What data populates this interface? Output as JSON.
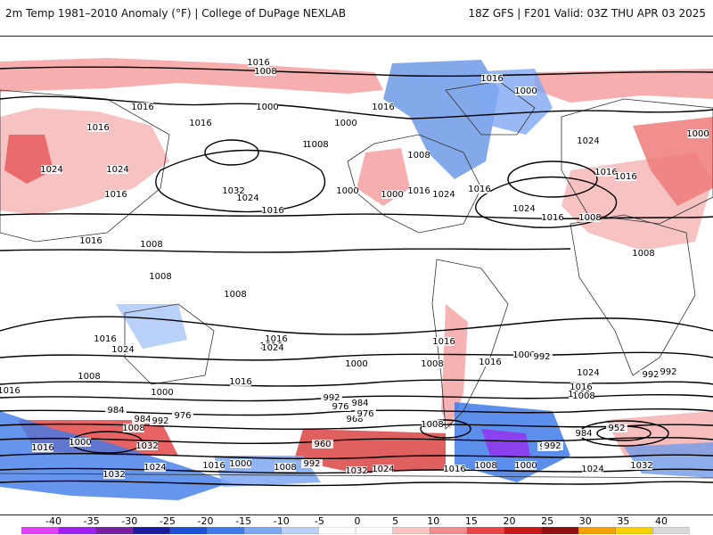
{
  "header": {
    "left_title": "2m Temp 1981–2010 Anomaly (°F) | College of DuPage NEXLAB",
    "right_title": "18Z GFS | F201 Valid: 03Z THU APR 03 2025"
  },
  "colorbar": {
    "ticks": [
      "-40",
      "-35",
      "-30",
      "-25",
      "-20",
      "-15",
      "-10",
      "-5",
      "0",
      "5",
      "10",
      "15",
      "20",
      "25",
      "30",
      "35",
      "40"
    ],
    "colors": [
      "#e040fb",
      "#a020f0",
      "#7a1fa2",
      "#1a1a9c",
      "#1e4fd6",
      "#3f7be8",
      "#7ea8f2",
      "#b9d0f8",
      "#ffffff",
      "#ffffff",
      "#f9c4c4",
      "#f18d8d",
      "#e84545",
      "#c81818",
      "#8e0d0d",
      "#f5a100",
      "#f7d000",
      "#d8d8d8"
    ]
  },
  "map": {
    "isobars": [
      {
        "label": "1016"
      },
      {
        "label": "1008"
      },
      {
        "label": "1000"
      },
      {
        "label": "1016"
      },
      {
        "label": "1016"
      },
      {
        "label": "1016"
      },
      {
        "label": "1024"
      },
      {
        "label": "1016"
      },
      {
        "label": "1016"
      },
      {
        "label": "1024"
      },
      {
        "label": "1032"
      },
      {
        "label": "1024"
      },
      {
        "label": "1016"
      },
      {
        "label": "1008"
      },
      {
        "label": "1000"
      },
      {
        "label": "1016"
      },
      {
        "label": "1000"
      },
      {
        "label": "1016"
      },
      {
        "label": "1008"
      },
      {
        "label": "1000"
      },
      {
        "label": "1024"
      },
      {
        "label": "1016"
      },
      {
        "label": "1016"
      },
      {
        "label": "1000"
      },
      {
        "label": "1024"
      },
      {
        "label": "1016"
      },
      {
        "label": "1024"
      },
      {
        "label": "1016"
      },
      {
        "label": "1000"
      },
      {
        "label": "1016"
      },
      {
        "label": "1008"
      },
      {
        "label": "1008"
      },
      {
        "label": "1008"
      },
      {
        "label": "1008"
      },
      {
        "label": "1008"
      },
      {
        "label": "1008"
      },
      {
        "label": "1016"
      },
      {
        "label": "1016"
      },
      {
        "label": "1024"
      },
      {
        "label": "1016"
      },
      {
        "label": "1024"
      },
      {
        "label": "1016"
      },
      {
        "label": "1008"
      },
      {
        "label": "1000"
      },
      {
        "label": "1016"
      },
      {
        "label": "1008"
      },
      {
        "label": "1016"
      },
      {
        "label": "1000"
      },
      {
        "label": "1024"
      },
      {
        "label": "1016"
      },
      {
        "label": "992"
      },
      {
        "label": "1008"
      },
      {
        "label": "1016"
      },
      {
        "label": "992"
      },
      {
        "label": "1000"
      },
      {
        "label": "984"
      },
      {
        "label": "984"
      },
      {
        "label": "992"
      },
      {
        "label": "976"
      },
      {
        "label": "1008"
      },
      {
        "label": "1032"
      },
      {
        "label": "1016"
      },
      {
        "label": "1000"
      },
      {
        "label": "1032"
      },
      {
        "label": "1024"
      },
      {
        "label": "1016"
      },
      {
        "label": "1000"
      },
      {
        "label": "1008"
      },
      {
        "label": "992"
      },
      {
        "label": "1032"
      },
      {
        "label": "1024"
      },
      {
        "label": "1016"
      },
      {
        "label": "1008"
      },
      {
        "label": "1000"
      },
      {
        "label": "1024"
      },
      {
        "label": "1032"
      },
      {
        "label": "992"
      },
      {
        "label": "984"
      },
      {
        "label": "976"
      },
      {
        "label": "968"
      },
      {
        "label": "960"
      },
      {
        "label": "1000"
      },
      {
        "label": "1008"
      },
      {
        "label": "984"
      },
      {
        "label": "992"
      },
      {
        "label": "976"
      },
      {
        "label": "952"
      },
      {
        "label": "1008"
      },
      {
        "label": "992"
      },
      {
        "label": "992"
      }
    ]
  }
}
